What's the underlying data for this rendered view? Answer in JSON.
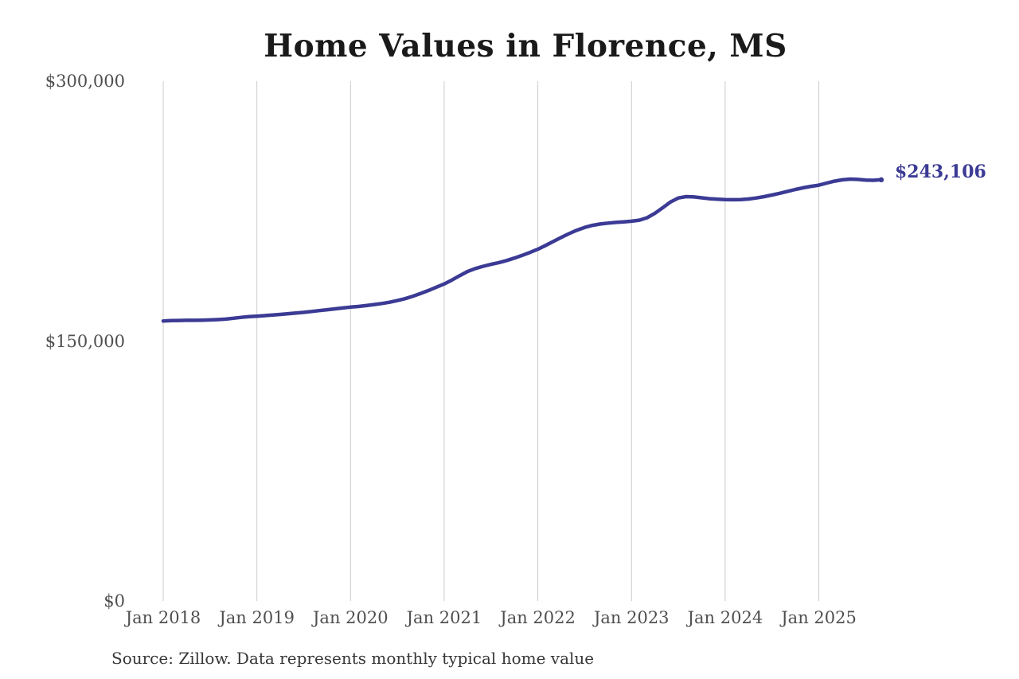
{
  "page": {
    "background": "#ffffff"
  },
  "chart_data": {
    "type": "line",
    "title": "Home Values in Florence, MS",
    "source_note": "Source: Zillow. Data represents monthly typical home value",
    "end_label": "$243,106",
    "final_value": 243106,
    "xlabel": "",
    "ylabel": "",
    "ylim": [
      0,
      300000
    ],
    "grid": "vertical-only",
    "legend": "none",
    "line_color": "#3b3a94",
    "grid_color": "#cccccc",
    "tick_color": "#4f4f4f",
    "title_color": "#1a1a1a",
    "x_start_month": "Jan 2018",
    "x_end_month": "Sep 2025",
    "x_frequency": "monthly",
    "x_tick_labels": [
      "Jan 2018",
      "Jan 2019",
      "Jan 2020",
      "Jan 2021",
      "Jan 2022",
      "Jan 2023",
      "Jan 2024",
      "Jan 2025"
    ],
    "y_ticks": [
      {
        "label": "$300,000",
        "value": 300000
      },
      {
        "label": "$150,000",
        "value": 150000
      },
      {
        "label": "$0",
        "value": 0
      }
    ],
    "series": [
      {
        "name": "Monthly typical home value",
        "unit": "USD",
        "monthly_values": [
          161600,
          161800,
          161900,
          162000,
          162000,
          162100,
          162200,
          162400,
          162700,
          163200,
          163700,
          164100,
          164400,
          164700,
          165000,
          165400,
          165800,
          166200,
          166600,
          167100,
          167600,
          168100,
          168600,
          169100,
          169600,
          170000,
          170500,
          171100,
          171700,
          172400,
          173400,
          174500,
          175900,
          177500,
          179200,
          181100,
          183000,
          185300,
          187800,
          190200,
          191900,
          193200,
          194300,
          195300,
          196500,
          197900,
          199500,
          201200,
          203000,
          205200,
          207500,
          209800,
          212000,
          214000,
          215600,
          216800,
          217600,
          218100,
          218500,
          218800,
          219200,
          219800,
          221200,
          223800,
          227000,
          230300,
          232600,
          233400,
          233200,
          232700,
          232200,
          231900,
          231700,
          231600,
          231700,
          232000,
          232600,
          233400,
          234300,
          235300,
          236400,
          237500,
          238500,
          239300,
          240000,
          241200,
          242300,
          243100,
          243500,
          243300,
          242900,
          242800,
          243106
        ]
      }
    ]
  }
}
